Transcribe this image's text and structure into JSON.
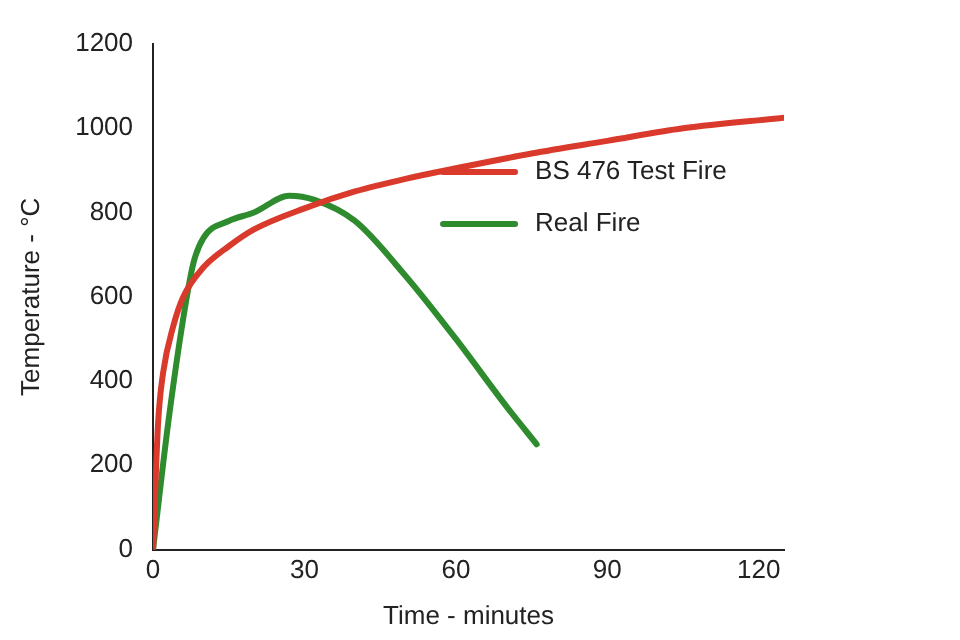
{
  "chart_data": {
    "type": "line",
    "xlabel": "Time - minutes",
    "ylabel": "Temperature - °C",
    "xlim": [
      0,
      125
    ],
    "xticks": [
      0,
      30,
      60,
      90,
      120
    ],
    "ylim": [
      0,
      1200
    ],
    "yticks": [
      0,
      200,
      400,
      600,
      800,
      1000,
      1200
    ],
    "grid": false,
    "legend": "top right",
    "marker": "none",
    "line_style": "solid",
    "series": [
      {
        "name": "BS 476 Test Fire",
        "color": "#d93a2b",
        "x": [
          0,
          1,
          2,
          4,
          6,
          10,
          15,
          20,
          30,
          40,
          50,
          60,
          75,
          90,
          105,
          125
        ],
        "values": [
          0,
          300,
          420,
          530,
          600,
          670,
          720,
          760,
          810,
          850,
          880,
          905,
          940,
          970,
          1000,
          1025
        ]
      },
      {
        "name": "Real Fire",
        "color": "#2e8b2e",
        "x": [
          0,
          3,
          6,
          8,
          10,
          15,
          20,
          27,
          32,
          40,
          50,
          60,
          70,
          76
        ],
        "values": [
          0,
          300,
          550,
          680,
          740,
          780,
          800,
          840,
          830,
          780,
          650,
          500,
          340,
          250
        ]
      }
    ]
  }
}
